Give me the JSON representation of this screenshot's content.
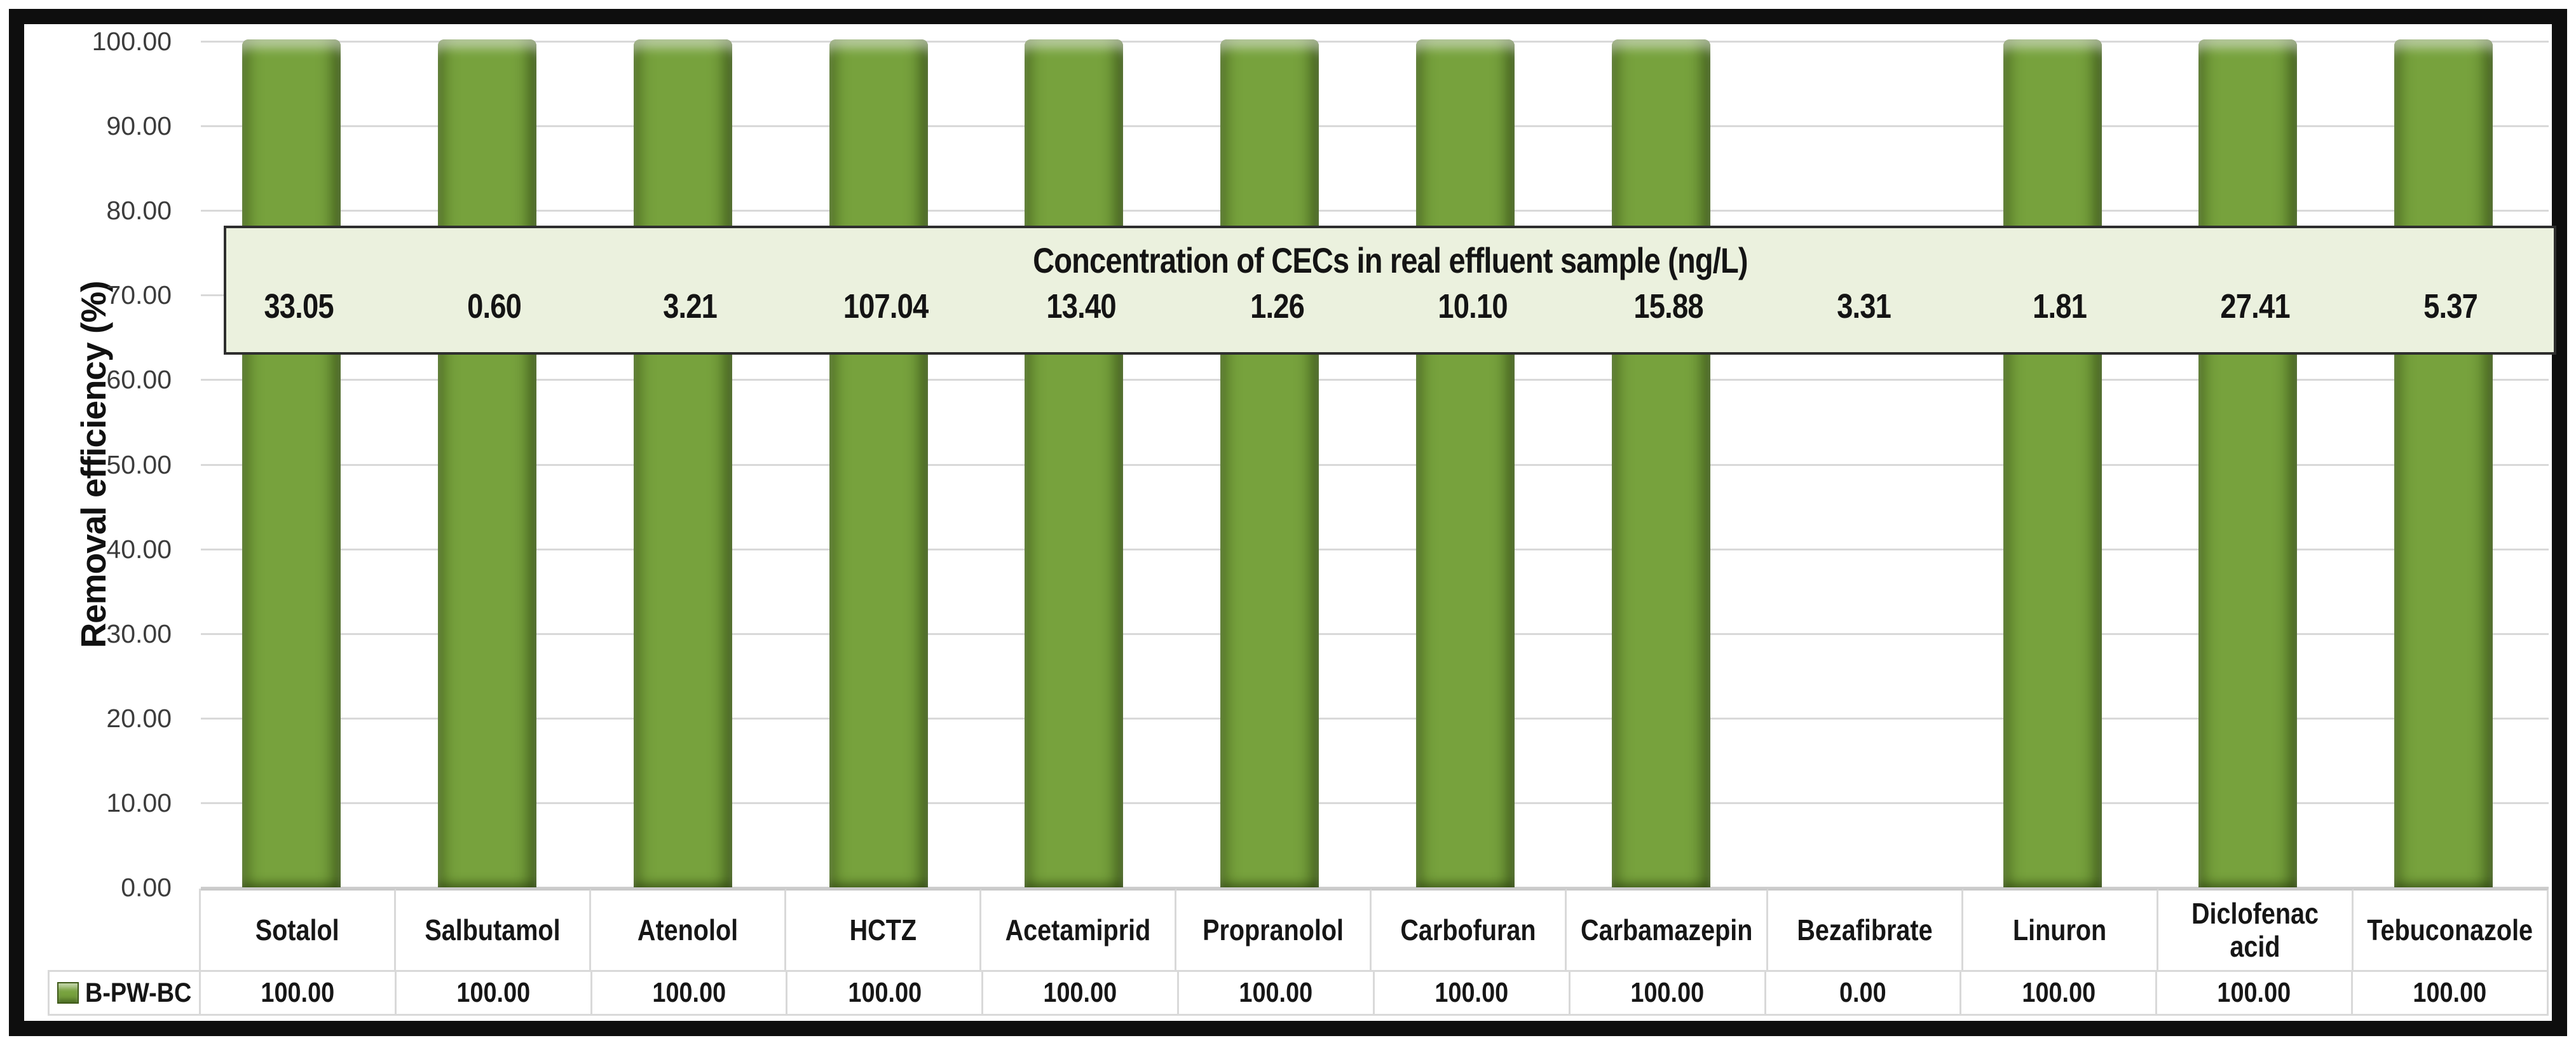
{
  "chart_data": {
    "type": "bar",
    "ylabel": "Removal efficiency (%)",
    "ylim": [
      0,
      100
    ],
    "grid": true,
    "y_ticks": [
      "100.00",
      "90.00",
      "80.00",
      "70.00",
      "60.00",
      "50.00",
      "40.00",
      "30.00",
      "20.00",
      "10.00",
      "0.00"
    ],
    "categories": [
      "Sotalol",
      "Salbutamol",
      "Atenolol",
      "HCTZ",
      "Acetamiprid",
      "Propranolol",
      "Carbofuran",
      "Carbamazepin",
      "Bezafibrate",
      "Linuron",
      "Diclofenac acid",
      "Tebuconazole"
    ],
    "series": [
      {
        "name": "B-PW-BC",
        "values": [
          100,
          100,
          100,
          100,
          100,
          100,
          100,
          100,
          0,
          100,
          100,
          100
        ],
        "display_values": [
          "100.00",
          "100.00",
          "100.00",
          "100.00",
          "100.00",
          "100.00",
          "100.00",
          "100.00",
          "0.00",
          "100.00",
          "100.00",
          "100.00"
        ],
        "color": "#77a23d"
      }
    ],
    "legend_position": "bottom-left data table",
    "annotation_banner": {
      "title": "Concentration of CECs in real effluent sample (ng/L)",
      "values": [
        "33.05",
        "0.60",
        "3.21",
        "107.04",
        "13.40",
        "1.26",
        "10.10",
        "15.88",
        "3.31",
        "1.81",
        "27.41",
        "5.37"
      ],
      "bg": "#ebf1de"
    }
  },
  "colors": {
    "bar": "#77a23d",
    "bar_edge": "#3f5a19",
    "banner_bg": "#ebf1de",
    "banner_border": "#2e2e2e",
    "gridline": "#d9d9d9",
    "table_border": "#d9d9d9",
    "frame_border": "#0e0e0e",
    "text": "#161616"
  }
}
